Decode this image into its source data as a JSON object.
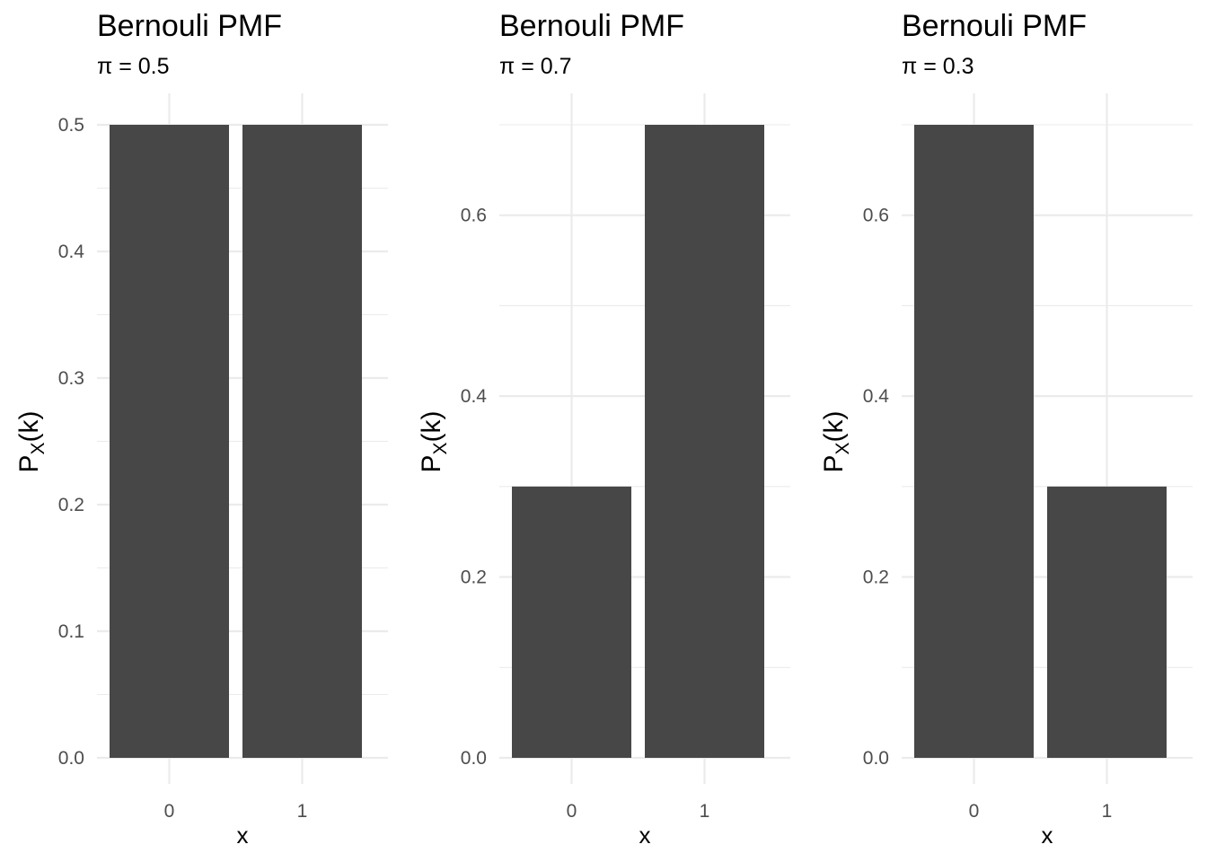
{
  "chart_data": [
    {
      "type": "bar",
      "title": "Bernouli PMF",
      "subtitle": "π = 0.5",
      "xlabel": "x",
      "ylabel": "P",
      "ylabel_sub": "X",
      "ylabel_suffix": "(k)",
      "categories": [
        "0",
        "1"
      ],
      "values": [
        0.5,
        0.5
      ],
      "ylim": [
        0,
        0.5
      ],
      "yticks": [
        0.0,
        0.1,
        0.2,
        0.3,
        0.4,
        0.5
      ],
      "ytick_labels": [
        "0.0",
        "0.1",
        "0.2",
        "0.3",
        "0.4",
        "0.5"
      ],
      "bar_color": "#474747",
      "grid": true
    },
    {
      "type": "bar",
      "title": "Bernouli PMF",
      "subtitle": "π = 0.7",
      "xlabel": "x",
      "ylabel": "P",
      "ylabel_sub": "X",
      "ylabel_suffix": "(k)",
      "categories": [
        "0",
        "1"
      ],
      "values": [
        0.3,
        0.7
      ],
      "ylim": [
        0,
        0.7
      ],
      "yticks": [
        0.0,
        0.2,
        0.4,
        0.6
      ],
      "ytick_labels": [
        "0.0",
        "0.2",
        "0.4",
        "0.6"
      ],
      "bar_color": "#474747",
      "grid": true
    },
    {
      "type": "bar",
      "title": "Bernouli PMF",
      "subtitle": "π = 0.3",
      "xlabel": "x",
      "ylabel": "P",
      "ylabel_sub": "X",
      "ylabel_suffix": "(k)",
      "categories": [
        "0",
        "1"
      ],
      "values": [
        0.7,
        0.3
      ],
      "ylim": [
        0,
        0.7
      ],
      "yticks": [
        0.0,
        0.2,
        0.4,
        0.6
      ],
      "ytick_labels": [
        "0.0",
        "0.2",
        "0.4",
        "0.6"
      ],
      "bar_color": "#474747",
      "grid": true
    }
  ]
}
